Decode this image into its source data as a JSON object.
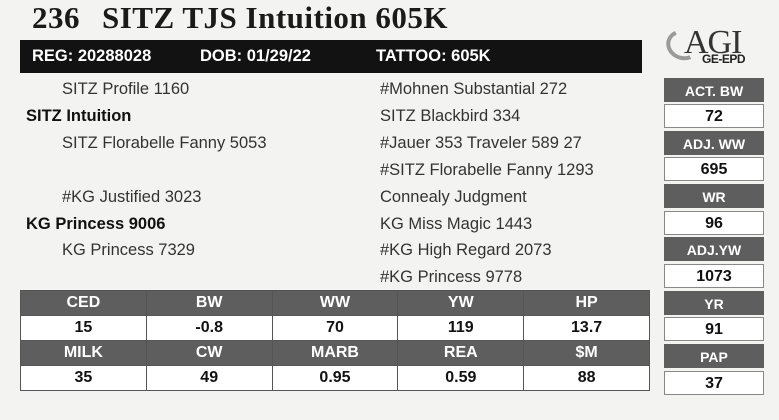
{
  "lot": {
    "number": "236",
    "name": "SITZ TJS Intuition 605K"
  },
  "registration": {
    "reg": "REG: 20288028",
    "dob": "DOB: 01/29/22",
    "tattoo": "TATTOO: 605K"
  },
  "logo": {
    "brand": "AGI",
    "sub": "GE-EPD"
  },
  "pedigree": {
    "sire_sire": "SITZ Profile 1160",
    "sire": "SITZ Intuition",
    "sire_dam": "SITZ Florabelle Fanny 5053",
    "dam_sire": "#KG Justified 3023",
    "dam": "KG Princess 9006",
    "dam_dam": "KG Princess 7329",
    "sss": "#Mohnen Substantial 272",
    "ssd": "SITZ Blackbird 334",
    "sds": "#Jauer 353 Traveler 589 27",
    "sdd": "#SITZ Florabelle Fanny 1293",
    "dss": "Connealy Judgment",
    "dsd": "KG Miss Magic 1443",
    "dds": "#KG High Regard 2073",
    "ddd": "#KG Princess 9778"
  },
  "side": [
    {
      "label": "ACT. BW",
      "value": "72"
    },
    {
      "label": "ADJ. WW",
      "value": "695"
    },
    {
      "label": "WR",
      "value": "96"
    },
    {
      "label": "ADJ.YW",
      "value": "1073"
    },
    {
      "label": "YR",
      "value": "91"
    },
    {
      "label": "PAP",
      "value": "37"
    }
  ],
  "epd_row1": {
    "headers": [
      "CED",
      "BW",
      "WW",
      "YW",
      "HP"
    ],
    "values": [
      "15",
      "-0.8",
      "70",
      "119",
      "13.7"
    ]
  },
  "epd_row2": {
    "headers": [
      "MILK",
      "CW",
      "MARB",
      "REA",
      "$M"
    ],
    "values": [
      "35",
      "49",
      "0.95",
      "0.59",
      "88"
    ]
  }
}
